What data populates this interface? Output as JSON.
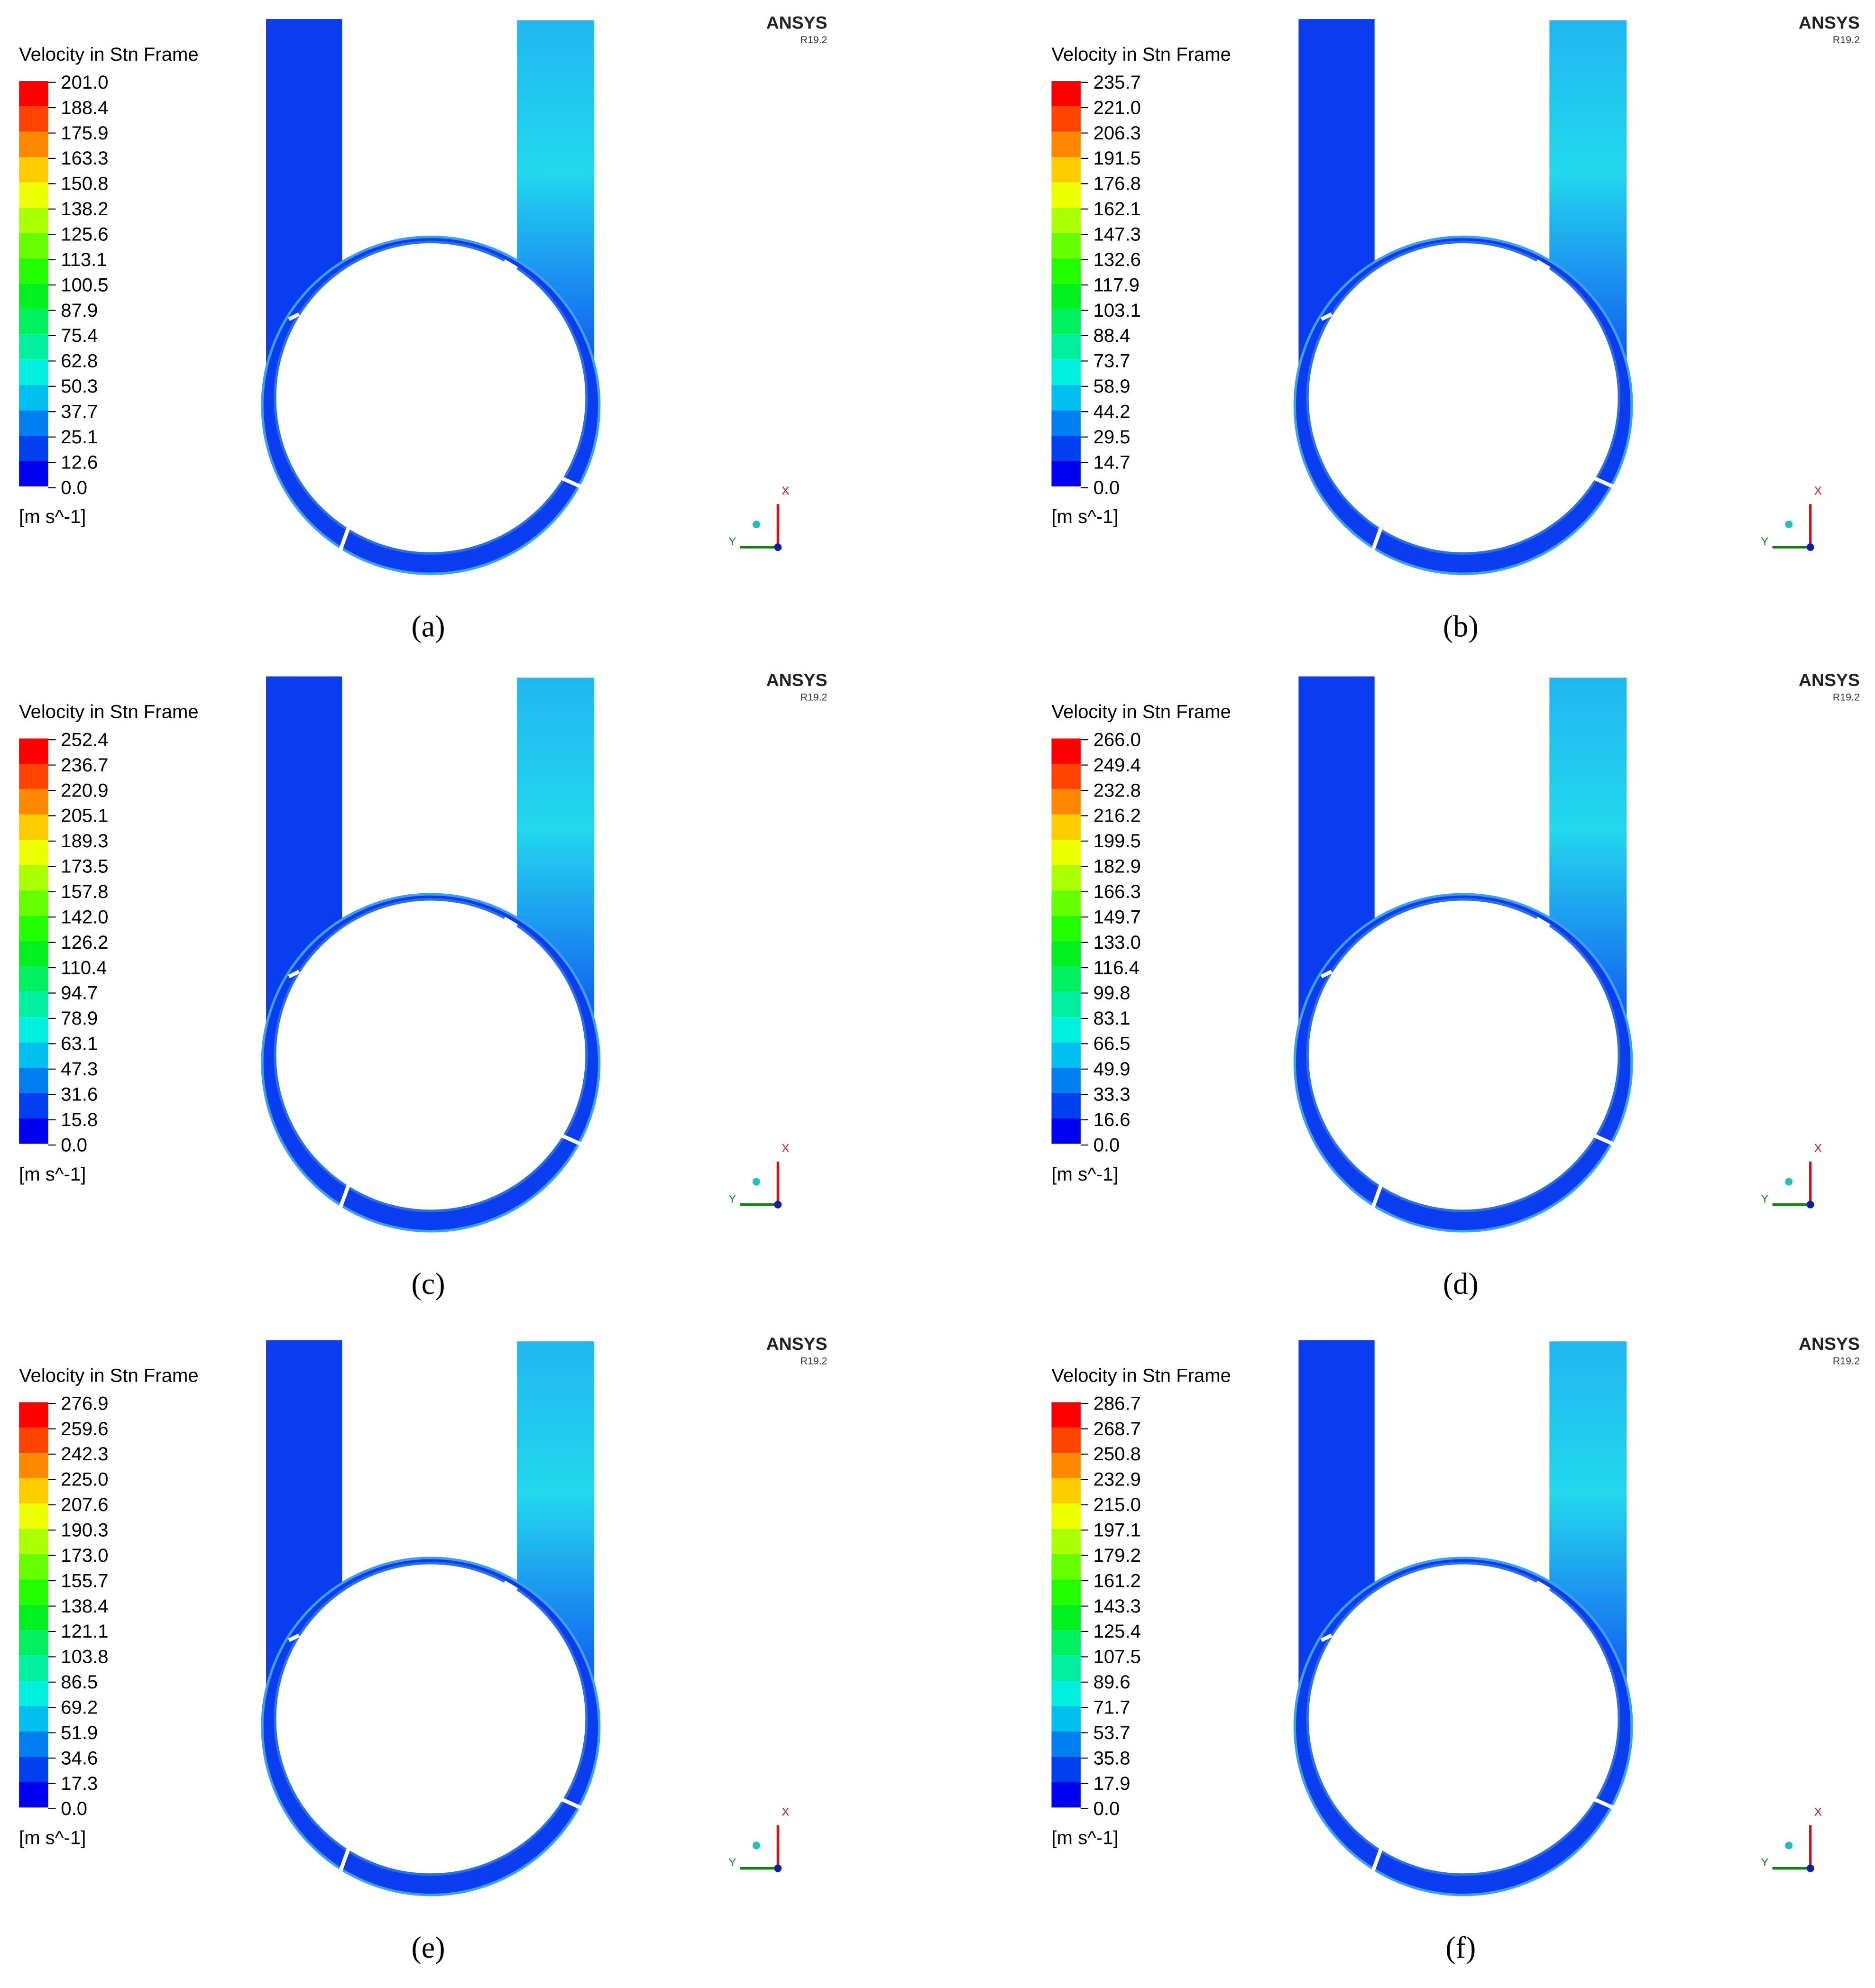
{
  "panels": [
    {
      "label": "(a)",
      "software": "ANSYS",
      "version": "R19.2",
      "legend": {
        "title": "Velocity in Stn Frame",
        "unit": "[m s^-1]",
        "levels": [
          "201.0",
          "188.4",
          "175.9",
          "163.3",
          "150.8",
          "138.2",
          "125.6",
          "113.1",
          "100.5",
          "87.9",
          "75.4",
          "62.8",
          "50.3",
          "37.7",
          "25.1",
          "12.6",
          "0.0"
        ]
      },
      "axes": {
        "x": "X",
        "y": "Y"
      }
    },
    {
      "label": "(b)",
      "software": "ANSYS",
      "version": "R19.2",
      "legend": {
        "title": "Velocity in Stn Frame",
        "unit": "[m s^-1]",
        "levels": [
          "235.7",
          "221.0",
          "206.3",
          "191.5",
          "176.8",
          "162.1",
          "147.3",
          "132.6",
          "117.9",
          "103.1",
          "88.4",
          "73.7",
          "58.9",
          "44.2",
          "29.5",
          "14.7",
          "0.0"
        ]
      },
      "axes": {
        "x": "X",
        "y": "Y"
      }
    },
    {
      "label": "(c)",
      "software": "ANSYS",
      "version": "R19.2",
      "legend": {
        "title": "Velocity in Stn Frame",
        "unit": "[m s^-1]",
        "levels": [
          "252.4",
          "236.7",
          "220.9",
          "205.1",
          "189.3",
          "173.5",
          "157.8",
          "142.0",
          "126.2",
          "110.4",
          "94.7",
          "78.9",
          "63.1",
          "47.3",
          "31.6",
          "15.8",
          "0.0"
        ]
      },
      "axes": {
        "x": "X",
        "y": "Y"
      }
    },
    {
      "label": "(d)",
      "software": "ANSYS",
      "version": "R19.2",
      "legend": {
        "title": "Velocity in Stn Frame",
        "unit": "[m s^-1]",
        "levels": [
          "266.0",
          "249.4",
          "232.8",
          "216.2",
          "199.5",
          "182.9",
          "166.3",
          "149.7",
          "133.0",
          "116.4",
          "99.8",
          "83.1",
          "66.5",
          "49.9",
          "33.3",
          "16.6",
          "0.0"
        ]
      },
      "axes": {
        "x": "X",
        "y": "Y"
      }
    },
    {
      "label": "(e)",
      "software": "ANSYS",
      "version": "R19.2",
      "legend": {
        "title": "Velocity in Stn Frame",
        "unit": "[m s^-1]",
        "levels": [
          "276.9",
          "259.6",
          "242.3",
          "225.0",
          "207.6",
          "190.3",
          "173.0",
          "155.7",
          "138.4",
          "121.1",
          "103.8",
          "86.5",
          "69.2",
          "51.9",
          "34.6",
          "17.3",
          "0.0"
        ]
      },
      "axes": {
        "x": "X",
        "y": "Y"
      }
    },
    {
      "label": "(f)",
      "software": "ANSYS",
      "version": "R19.2",
      "legend": {
        "title": "Velocity in Stn Frame",
        "unit": "[m s^-1]",
        "levels": [
          "286.7",
          "268.7",
          "250.8",
          "232.9",
          "215.0",
          "197.1",
          "179.2",
          "161.2",
          "143.3",
          "125.4",
          "107.5",
          "89.6",
          "71.7",
          "53.7",
          "35.8",
          "17.9",
          "0.0"
        ]
      },
      "axes": {
        "x": "X",
        "y": "Y"
      }
    }
  ]
}
